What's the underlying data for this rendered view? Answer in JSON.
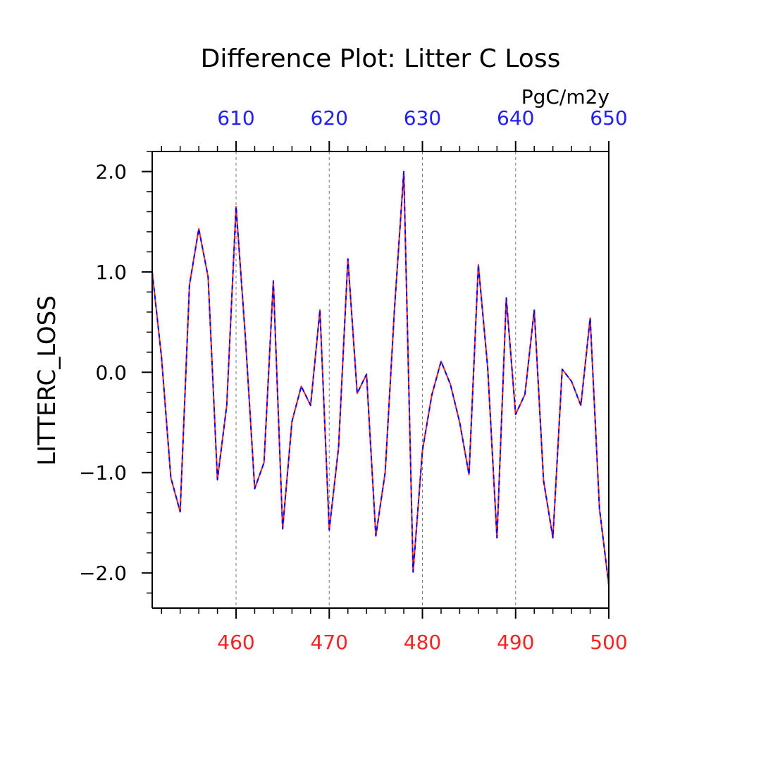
{
  "chart_data": {
    "type": "line",
    "title": "Difference Plot: Litter C Loss",
    "units": "PgC/m2y",
    "ylabel": "LITTERC_LOSS",
    "xlabel": "",
    "xlim": [
      451,
      500
    ],
    "ylim": [
      -2.35,
      2.2
    ],
    "x_ticks": [
      460,
      470,
      480,
      490,
      500
    ],
    "x_tick_labels": [
      "460",
      "470",
      "480",
      "490",
      "500"
    ],
    "x_top_ticks": [
      610,
      620,
      630,
      640,
      650
    ],
    "x_top_tick_labels": [
      "610",
      "620",
      "630",
      "640",
      "650"
    ],
    "top_axis_offset": 150,
    "y_ticks": [
      2.0,
      1.0,
      0.0,
      -1.0,
      -2.0
    ],
    "y_tick_labels": [
      "2.0",
      "1.0",
      "0.0",
      "−1.0",
      "−2.0"
    ],
    "grid": "vertical dashed at major x ticks",
    "colors": {
      "bottom_axis": "#ff2020",
      "top_axis": "#2020ff",
      "series_primary": "#ff2020",
      "series_overlay": "#0000ff",
      "axis": "#000000"
    },
    "x": [
      451,
      452,
      453,
      454,
      455,
      456,
      457,
      458,
      459,
      460,
      461,
      462,
      463,
      464,
      465,
      466,
      467,
      468,
      469,
      470,
      471,
      472,
      473,
      474,
      475,
      476,
      477,
      478,
      479,
      480,
      481,
      482,
      483,
      484,
      485,
      486,
      487,
      488,
      489,
      490,
      491,
      492,
      493,
      494,
      495,
      496,
      497,
      498,
      499,
      500
    ],
    "series": [
      {
        "values": [
          1.0,
          0.15,
          -1.05,
          -1.39,
          0.87,
          1.43,
          0.95,
          -1.07,
          -0.33,
          1.65,
          0.35,
          -1.16,
          -0.9,
          0.91,
          -1.56,
          -0.49,
          -0.14,
          -0.33,
          0.62,
          -1.57,
          -0.75,
          1.13,
          -0.21,
          -0.02,
          -1.63,
          -1.0,
          0.63,
          2.0,
          -1.99,
          -0.78,
          -0.23,
          0.11,
          -0.12,
          -0.5,
          -1.02,
          1.07,
          0.05,
          -1.65,
          0.74,
          -0.42,
          -0.22,
          0.62,
          -1.08,
          -1.65,
          0.03,
          -0.09,
          -0.33,
          0.54,
          -1.36,
          -2.12
        ]
      }
    ]
  }
}
